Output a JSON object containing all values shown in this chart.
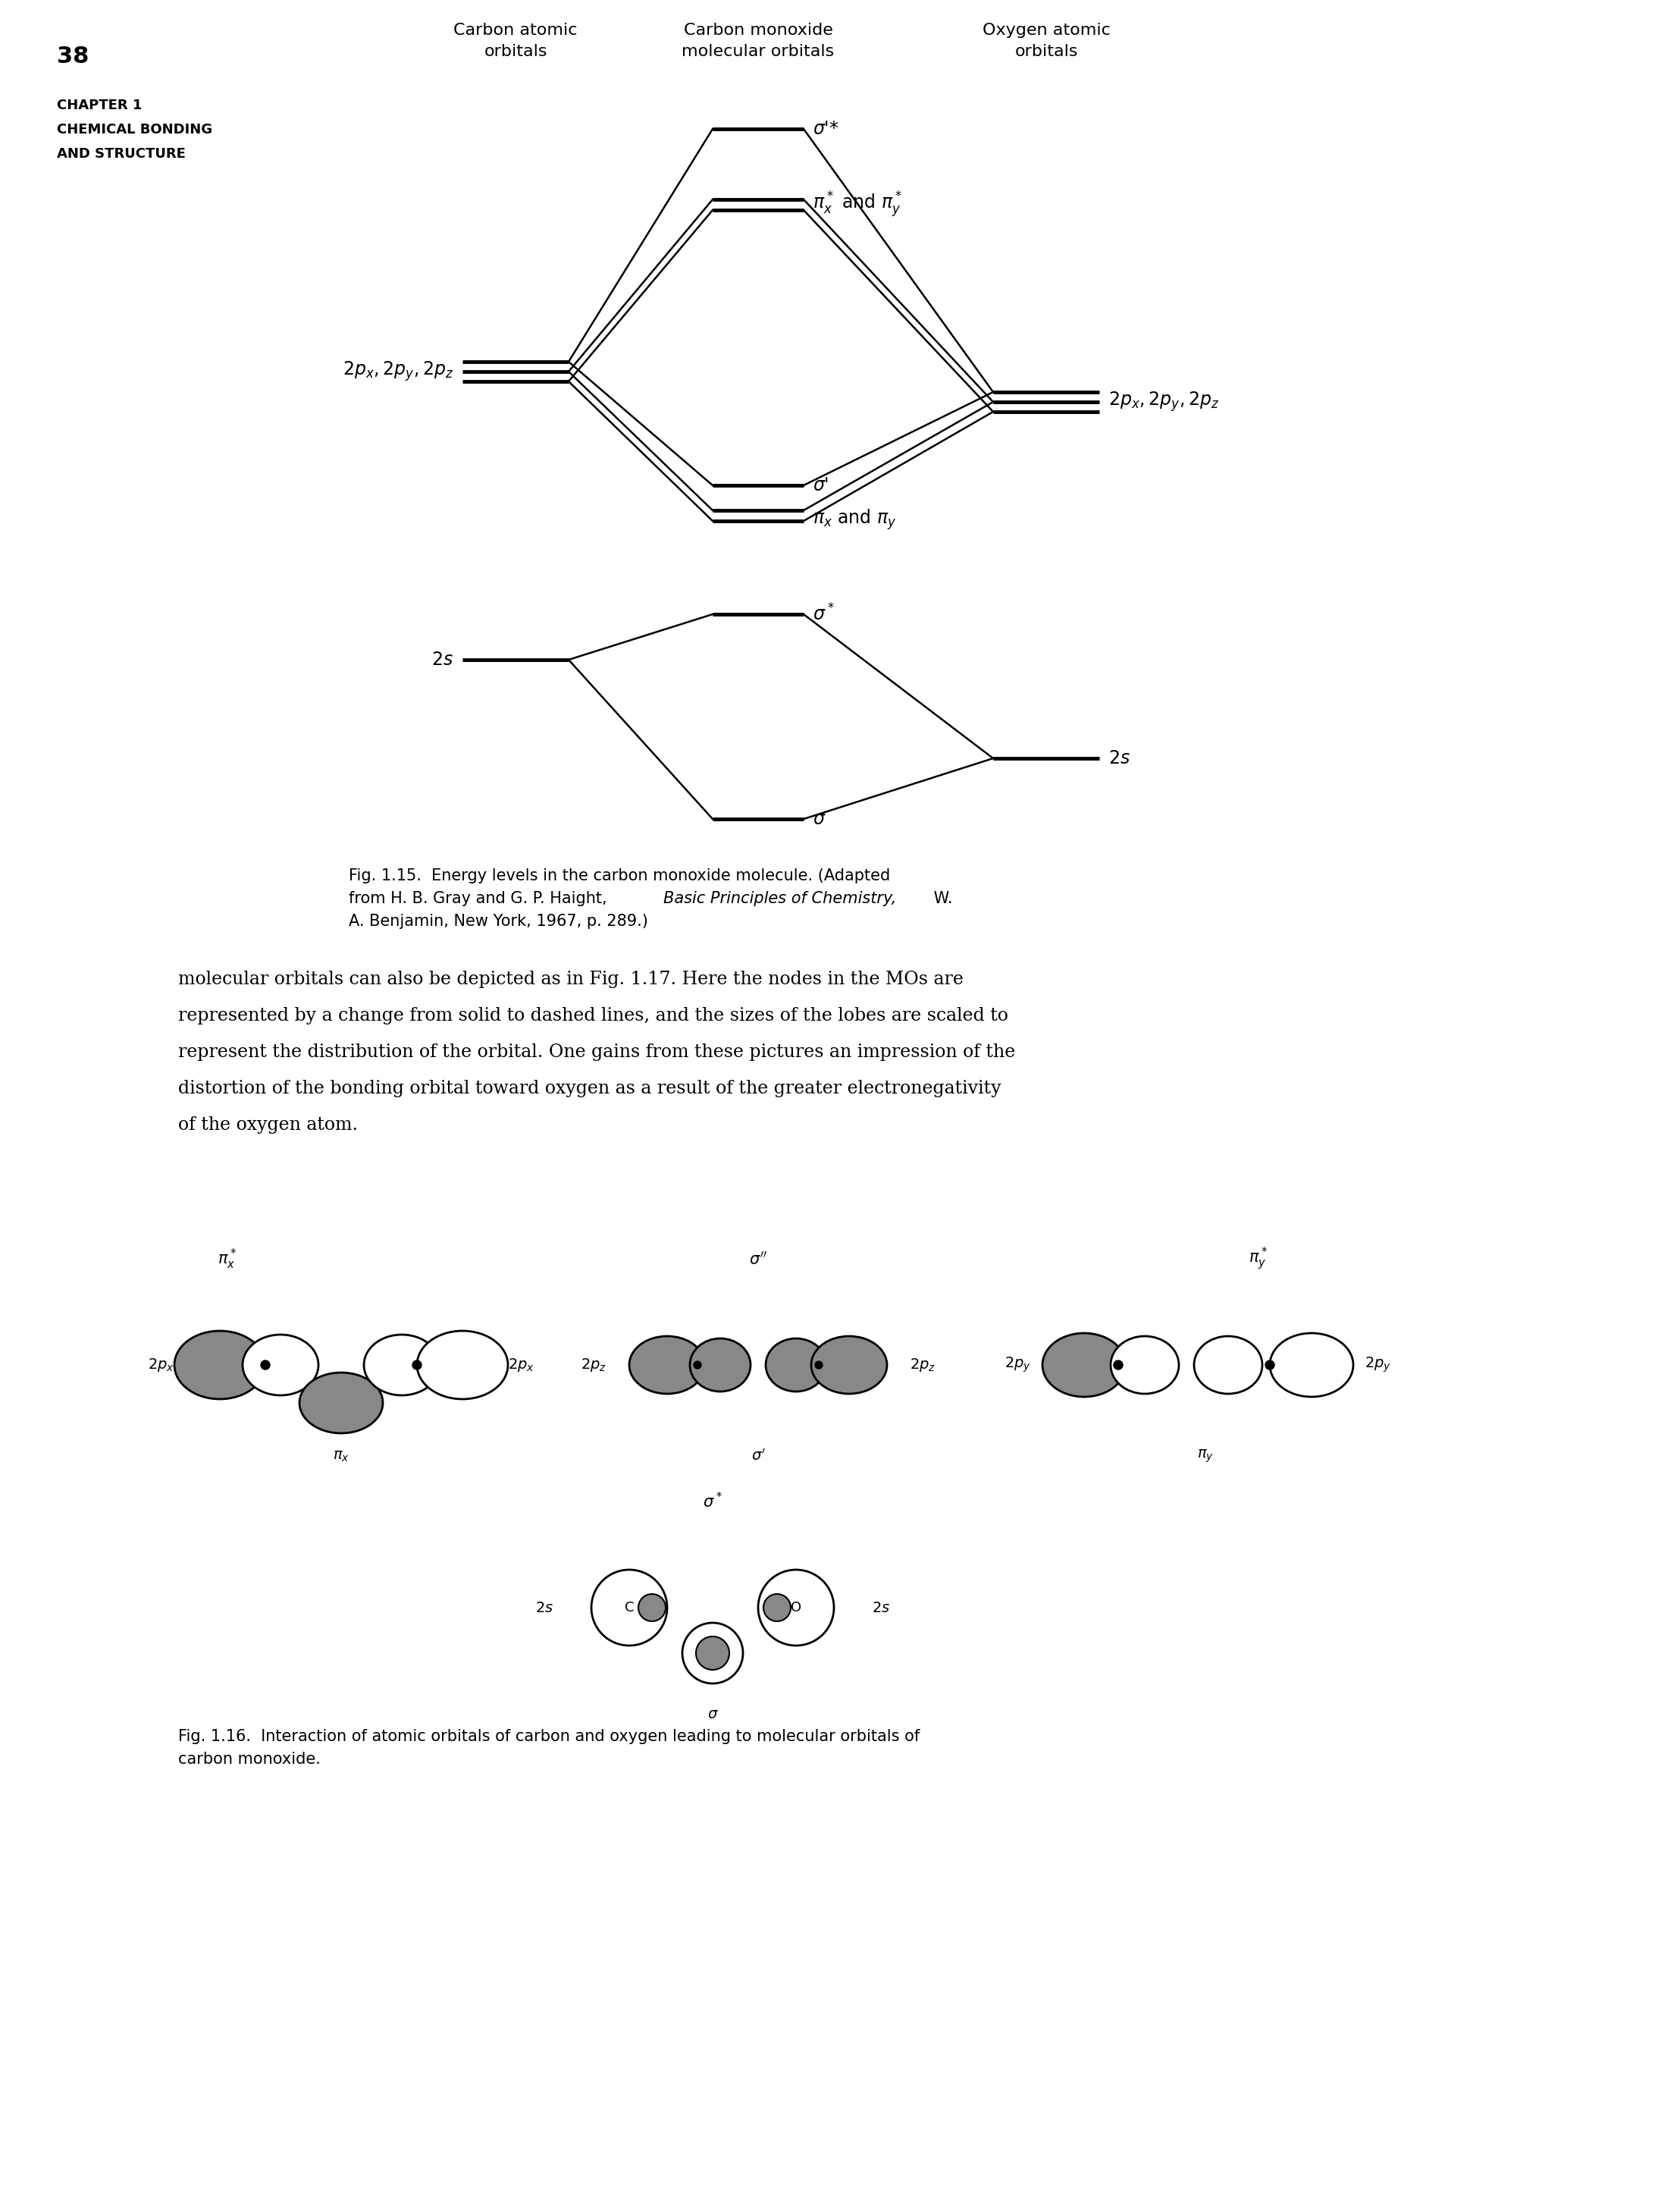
{
  "page_number": "38",
  "chapter_text": [
    "CHAPTER 1",
    "CHEMICAL BONDING",
    "AND STRUCTURE"
  ],
  "header_col1": "Carbon atomic\norbitals",
  "header_col2": "Carbon monoxide\nmolecular orbitals",
  "header_col3": "Oxygen atomic\norbitals",
  "fig115_caption": "Fig. 1.15.  Energy levels in the carbon monoxide molecule. (Adapted\nfrom H. B. Gray and G. P. Haight, ",
  "fig115_caption_italic": "Basic Principles of Chemistry,",
  "fig115_caption_end": " W.\nA. Benjamin, New York, 1967, p. 289.)",
  "body_text": "molecular orbitals can also be depicted as in Fig. 1.17. Here the nodes in the MOs are\nrepresented by a change from solid to dashed lines, and the sizes of the lobes are scaled to\nrepresent the distribution of the orbital. One gains from these pictures an impression of the\ndistortion of the bonding orbital toward oxygen as a result of the greater electronegativity\nof the oxygen atom.",
  "fig116_caption": "Fig. 1.16.  Interaction of atomic orbitals of carbon and oxygen leading to molecular orbitals of\ncarbon monoxide.",
  "bg_color": "#ffffff",
  "text_color": "#000000"
}
